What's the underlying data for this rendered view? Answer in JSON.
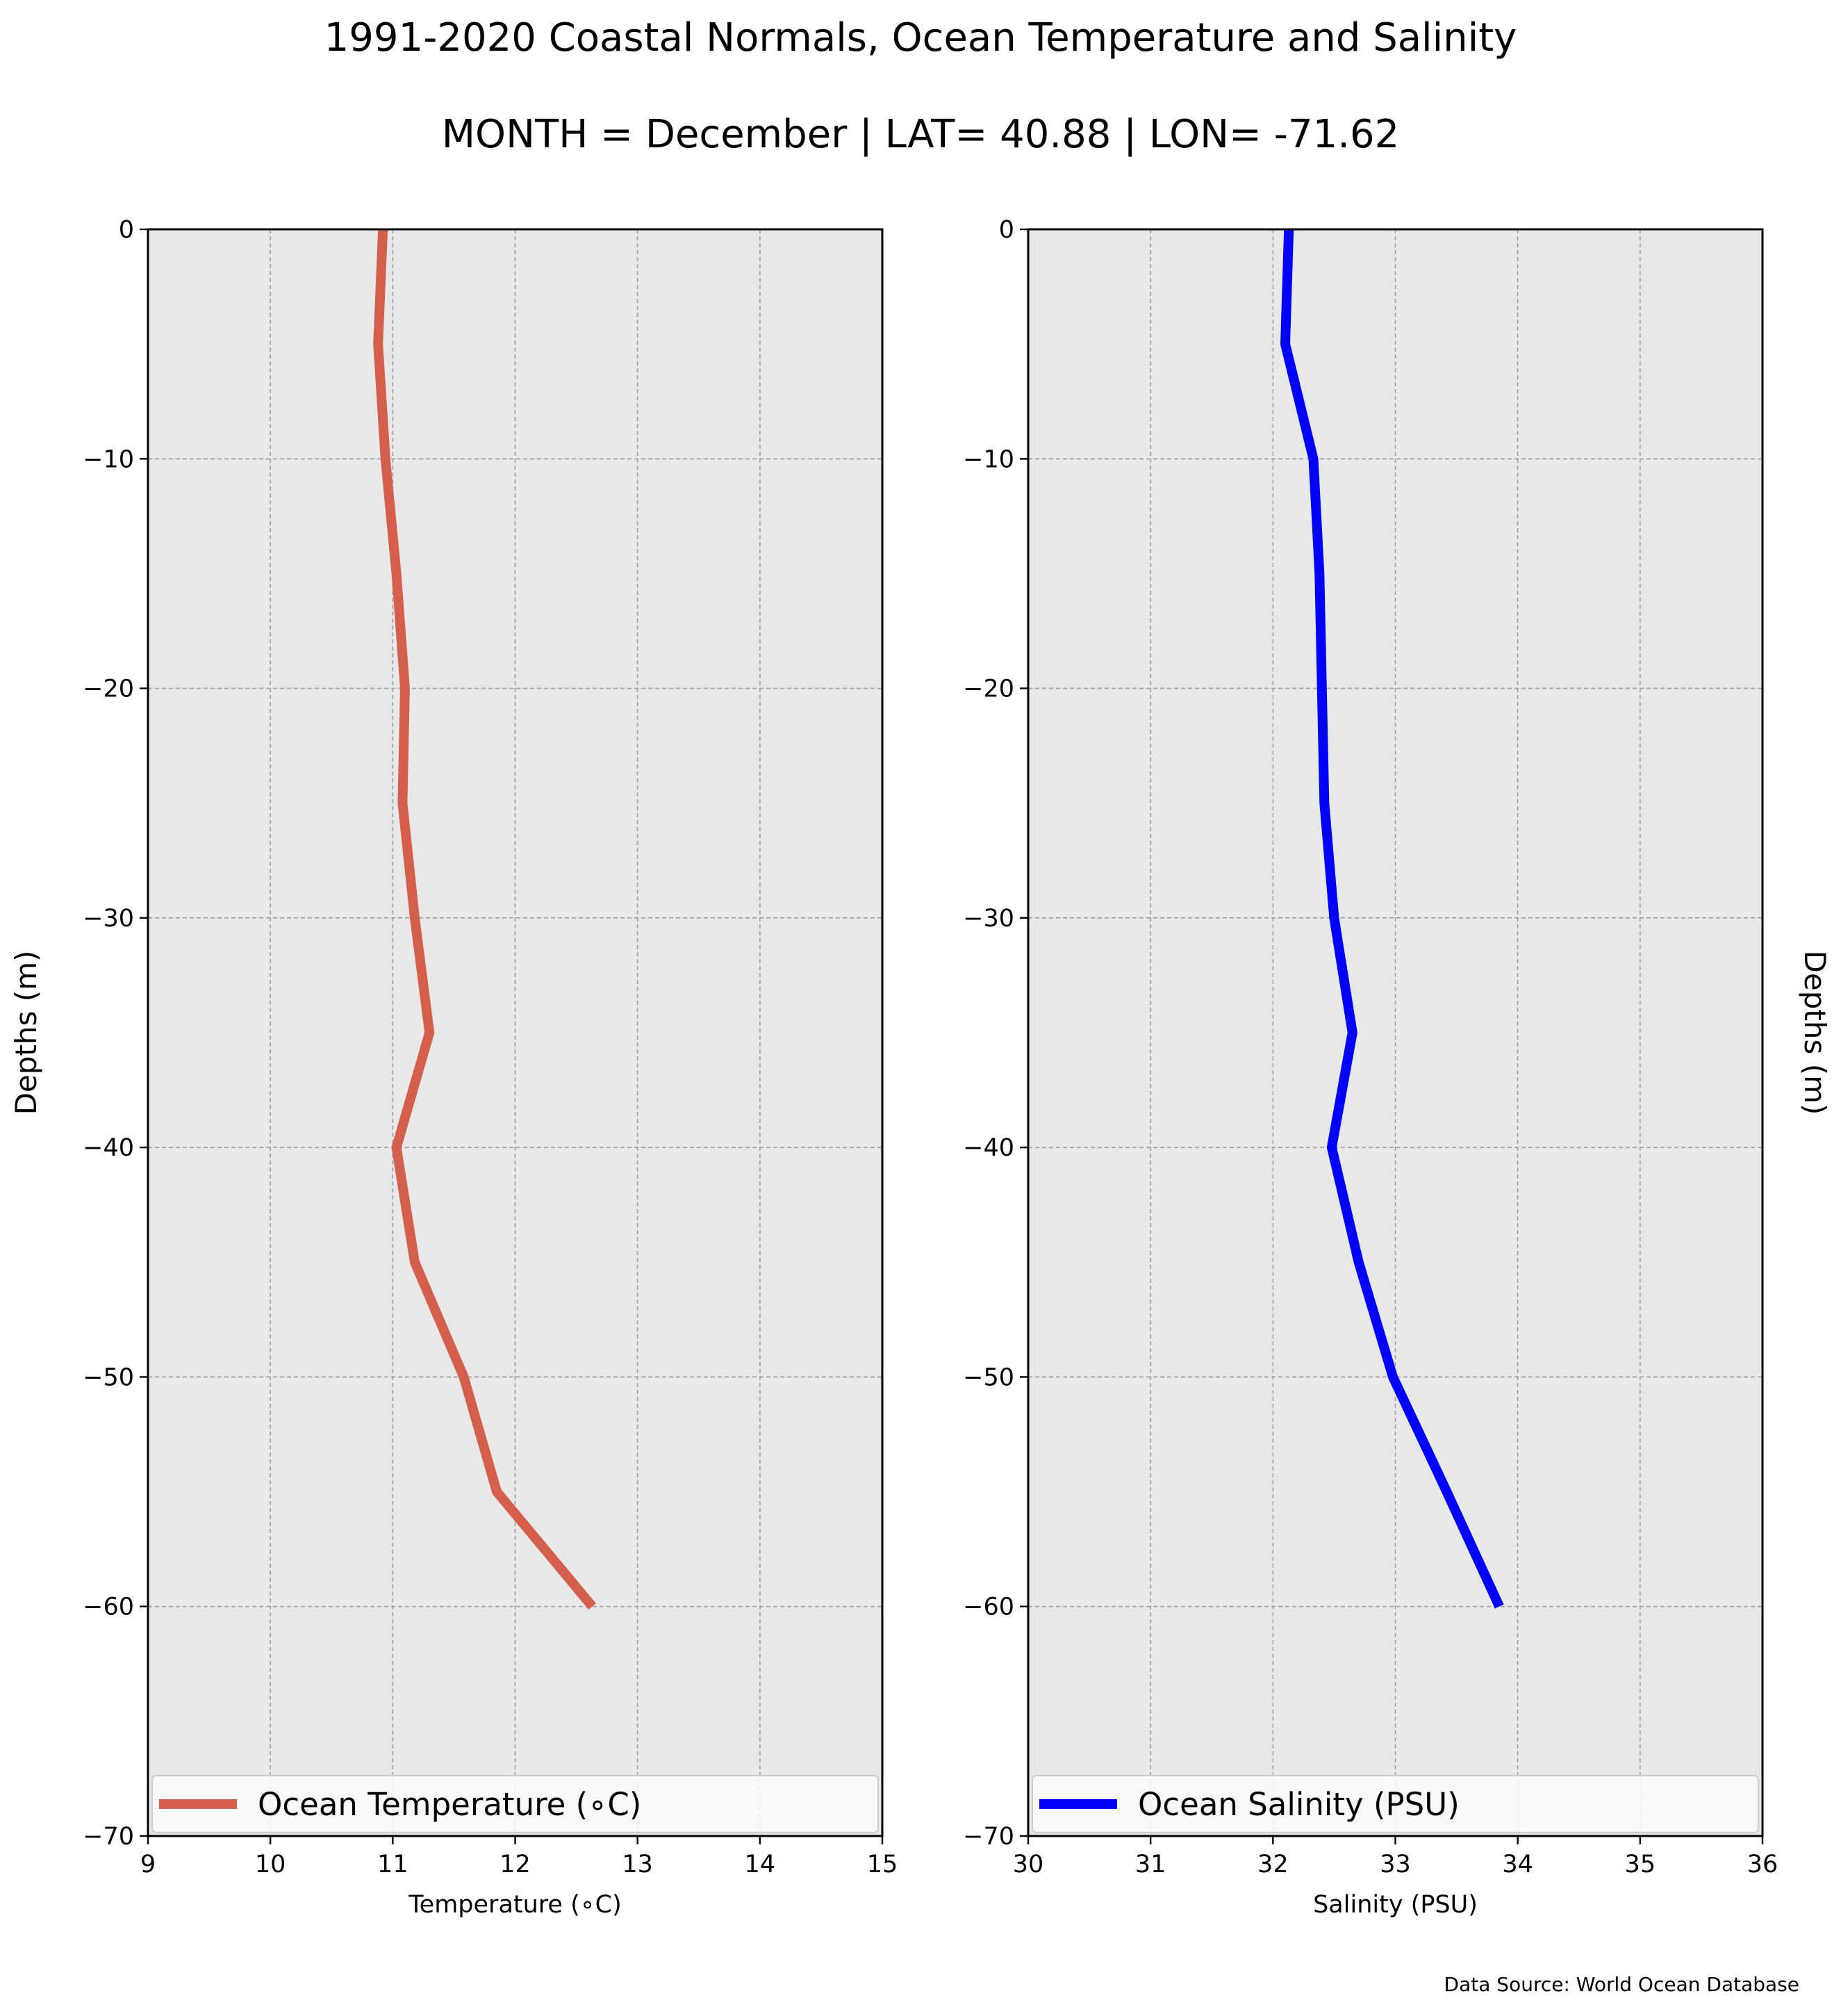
{
  "figure": {
    "title": "1991-2020 Coastal Normals, Ocean Temperature and Salinity",
    "subtitle": "MONTH = December | LAT= 40.88 | LON= -71.62",
    "source": "Data Source: World Ocean Database"
  },
  "chart_data": [
    {
      "type": "line",
      "xlabel": "Temperature (∘C)",
      "ylabel": "Depths (m)",
      "xlim": [
        9,
        15
      ],
      "ylim": [
        -70,
        0
      ],
      "xticks": [
        "9",
        "10",
        "11",
        "12",
        "13",
        "14",
        "15"
      ],
      "yticks": [
        "0",
        "−10",
        "−20",
        "−30",
        "−40",
        "−50",
        "−60",
        "−70"
      ],
      "grid": true,
      "legend_position": "lower-center",
      "series": [
        {
          "name": "Ocean Temperature (∘C)",
          "color": "#d45f4c",
          "x": [
            10.92,
            10.88,
            10.94,
            11.03,
            11.1,
            11.08,
            11.18,
            11.3,
            11.03,
            11.18,
            11.58,
            11.85,
            12.63
          ],
          "y": [
            0,
            -5,
            -10,
            -15,
            -20,
            -25,
            -30,
            -35,
            -40,
            -45,
            -50,
            -55,
            -60
          ]
        }
      ]
    },
    {
      "type": "line",
      "xlabel": "Salinity (PSU)",
      "ylabel": "Depths (m)",
      "xlim": [
        30,
        36
      ],
      "ylim": [
        -70,
        0
      ],
      "xticks": [
        "30",
        "31",
        "32",
        "33",
        "34",
        "35",
        "36"
      ],
      "yticks": [
        "0",
        "−10",
        "−20",
        "−30",
        "−40",
        "−50",
        "−60",
        "−70"
      ],
      "grid": true,
      "legend_position": "lower-center",
      "series": [
        {
          "name": "Ocean Salinity (PSU)",
          "color": "#0000ff",
          "x": [
            32.13,
            32.1,
            32.33,
            32.38,
            32.4,
            32.42,
            32.5,
            32.65,
            32.48,
            32.7,
            32.98,
            33.42,
            33.85
          ],
          "y": [
            0,
            -5,
            -10,
            -15,
            -20,
            -25,
            -30,
            -35,
            -40,
            -45,
            -50,
            -55,
            -60
          ]
        }
      ]
    }
  ]
}
